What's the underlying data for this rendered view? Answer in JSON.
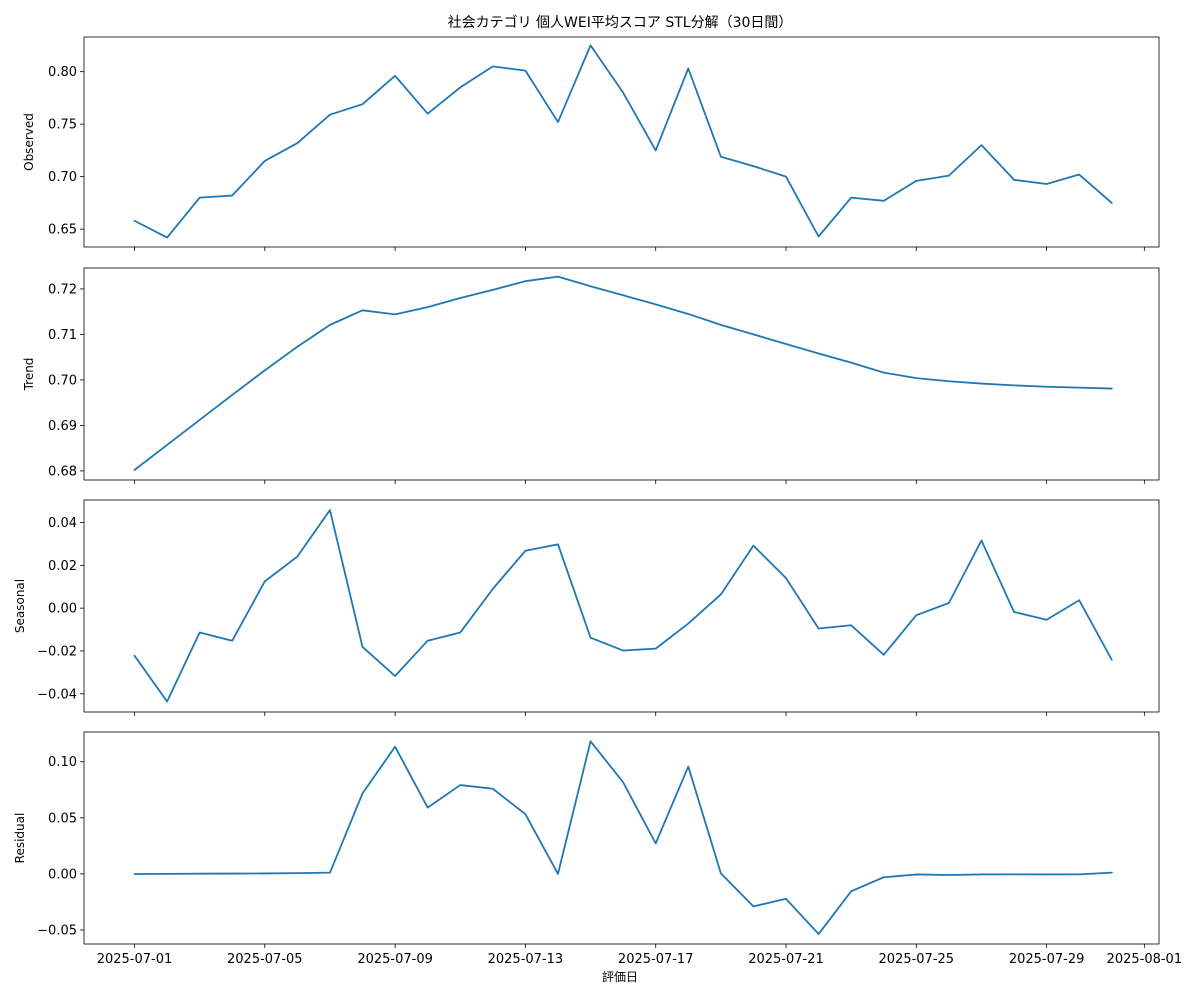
{
  "chart_data": {
    "type": "line",
    "title": "社会カテゴリ 個人WEI平均スコア STL分解（30日間）",
    "xlabel": "評価日",
    "x_tick_labels": [
      "2025-07-01",
      "2025-07-05",
      "2025-07-09",
      "2025-07-13",
      "2025-07-17",
      "2025-07-21",
      "2025-07-25",
      "2025-07-29",
      "2025-08-01"
    ],
    "x_tick_days": [
      0,
      4,
      8,
      12,
      16,
      20,
      24,
      28,
      31
    ],
    "x_dates": [
      "2025-07-01",
      "2025-07-02",
      "2025-07-03",
      "2025-07-04",
      "2025-07-05",
      "2025-07-06",
      "2025-07-07",
      "2025-07-08",
      "2025-07-09",
      "2025-07-10",
      "2025-07-11",
      "2025-07-12",
      "2025-07-13",
      "2025-07-14",
      "2025-07-15",
      "2025-07-16",
      "2025-07-17",
      "2025-07-18",
      "2025-07-19",
      "2025-07-20",
      "2025-07-21",
      "2025-07-22",
      "2025-07-23",
      "2025-07-24",
      "2025-07-25",
      "2025-07-26",
      "2025-07-27",
      "2025-07-28",
      "2025-07-29",
      "2025-07-30",
      "2025-07-31"
    ],
    "line_color": "#1f77b4",
    "grid": false,
    "panels": [
      {
        "ylabel": "Observed",
        "ylim": [
          0.633,
          0.833
        ],
        "yticks": [
          0.65,
          0.7,
          0.75,
          0.8
        ],
        "ytick_labels": [
          "0.65",
          "0.70",
          "0.75",
          "0.80"
        ],
        "values": [
          0.658,
          0.642,
          0.68,
          0.682,
          0.715,
          0.732,
          0.759,
          0.769,
          0.796,
          0.76,
          0.785,
          0.805,
          0.801,
          0.752,
          0.825,
          0.78,
          0.725,
          0.803,
          0.719,
          0.71,
          0.7,
          0.643,
          0.68,
          0.677,
          0.696,
          0.701,
          0.73,
          0.697,
          0.693,
          0.702,
          0.675
        ]
      },
      {
        "ylabel": "Trend",
        "ylim": [
          0.678,
          0.7246
        ],
        "yticks": [
          0.68,
          0.69,
          0.7,
          0.71,
          0.72
        ],
        "ytick_labels": [
          "0.68",
          "0.69",
          "0.70",
          "0.71",
          "0.72"
        ],
        "values": [
          0.6802,
          0.6857,
          0.6912,
          0.6967,
          0.7021,
          0.7073,
          0.7121,
          0.7153,
          0.7144,
          0.716,
          0.718,
          0.7198,
          0.7217,
          0.7227,
          0.7206,
          0.7186,
          0.7166,
          0.7145,
          0.7121,
          0.71,
          0.7079,
          0.7058,
          0.7038,
          0.7016,
          0.7004,
          0.6997,
          0.6992,
          0.6988,
          0.6985,
          0.6983,
          0.6981
        ]
      },
      {
        "ylabel": "Seasonal",
        "ylim": [
          -0.0485,
          0.0505
        ],
        "yticks": [
          -0.04,
          -0.02,
          0.0,
          0.02,
          0.04
        ],
        "ytick_labels": [
          "−0.04",
          "−0.02",
          "0.00",
          "0.02",
          "0.04"
        ],
        "values": [
          -0.0222,
          -0.0436,
          -0.0114,
          -0.0152,
          0.0125,
          0.0241,
          0.0458,
          -0.0181,
          -0.0317,
          -0.0152,
          -0.0114,
          0.009,
          0.0268,
          0.0298,
          -0.0138,
          -0.0198,
          -0.0189,
          -0.0072,
          0.0064,
          0.0292,
          0.014,
          -0.0095,
          -0.008,
          -0.0218,
          -0.0033,
          0.0024,
          0.0316,
          -0.0018,
          -0.0054,
          0.0037,
          -0.0241
        ]
      },
      {
        "ylabel": "Residual",
        "ylim": [
          -0.0625,
          0.1265
        ],
        "yticks": [
          -0.05,
          0.0,
          0.05,
          0.1
        ],
        "ytick_labels": [
          "−0.05",
          "0.00",
          "0.05",
          "0.10"
        ],
        "values": [
          -0.0001,
          0.0,
          0.0002,
          0.0003,
          0.0004,
          0.0007,
          0.0011,
          0.0718,
          0.1134,
          0.0591,
          0.0792,
          0.0759,
          0.0532,
          0.0,
          0.1182,
          0.0817,
          0.0272,
          0.0957,
          0.0005,
          -0.029,
          -0.0222,
          -0.0536,
          -0.0155,
          -0.003,
          -0.0005,
          -0.001,
          -0.0005,
          -0.0004,
          -0.0005,
          -0.0004,
          0.0011
        ]
      }
    ]
  }
}
